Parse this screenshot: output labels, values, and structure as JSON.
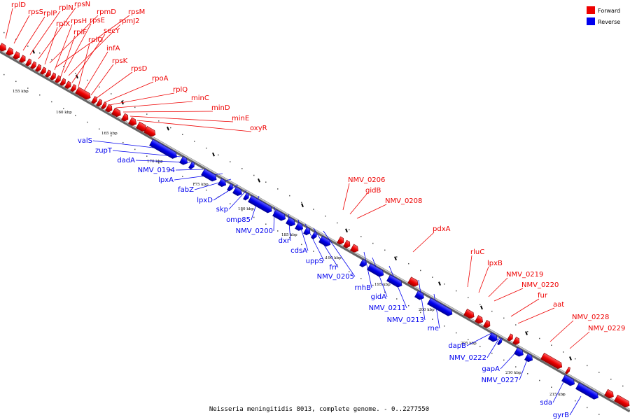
{
  "caption": "Neisseria meningitidis 8013, complete genome. - 0..2277550",
  "legend": [
    {
      "label": "Forward",
      "color": "#ee0000"
    },
    {
      "label": "Reverse",
      "color": "#0000ee"
    }
  ],
  "colors": {
    "forward": "#ee0000",
    "reverse": "#0000ee",
    "backbone": "#888888"
  },
  "ticks": [
    "155 kbp",
    "160 kbp",
    "165 kbp",
    "170 kbp",
    "175 kbp",
    "180 kbp",
    "185 kbp",
    "190 kbp",
    "195 kbp",
    "200 kbp",
    "205 kbp",
    "210 kbp",
    "215 kbp"
  ],
  "forward_labels": [
    "rplD",
    "rpsS",
    "rplP",
    "rplN",
    "rpsN",
    "rpmD",
    "rpsM",
    "rplX",
    "rpsH",
    "rpsE",
    "rpmJ2",
    "rplF",
    "secY",
    "rplO",
    "infA",
    "rpsK",
    "rpsD",
    "rpoA",
    "rplQ",
    "minC",
    "minD",
    "minE",
    "oxyR",
    "NMV_0206",
    "gidB",
    "NMV_0208",
    "pdxA",
    "rluC",
    "lpxB",
    "NMV_0219",
    "NMV_0220",
    "fur",
    "aat",
    "NMV_0228",
    "NMV_0229"
  ],
  "reverse_labels": [
    "valS",
    "zupT",
    "dadA",
    "NMV_0194",
    "lpxA",
    "fabZ",
    "lpxD",
    "skp",
    "omp85",
    "NMV_0200",
    "dxr",
    "cdsA",
    "uppS",
    "frr",
    "NMV_0205",
    "rnhB",
    "gidA",
    "NMV_0211",
    "NMV_0213",
    "rne",
    "dapB",
    "NMV_0222",
    "gapA",
    "NMV_0227",
    "sda",
    "gyrB"
  ]
}
